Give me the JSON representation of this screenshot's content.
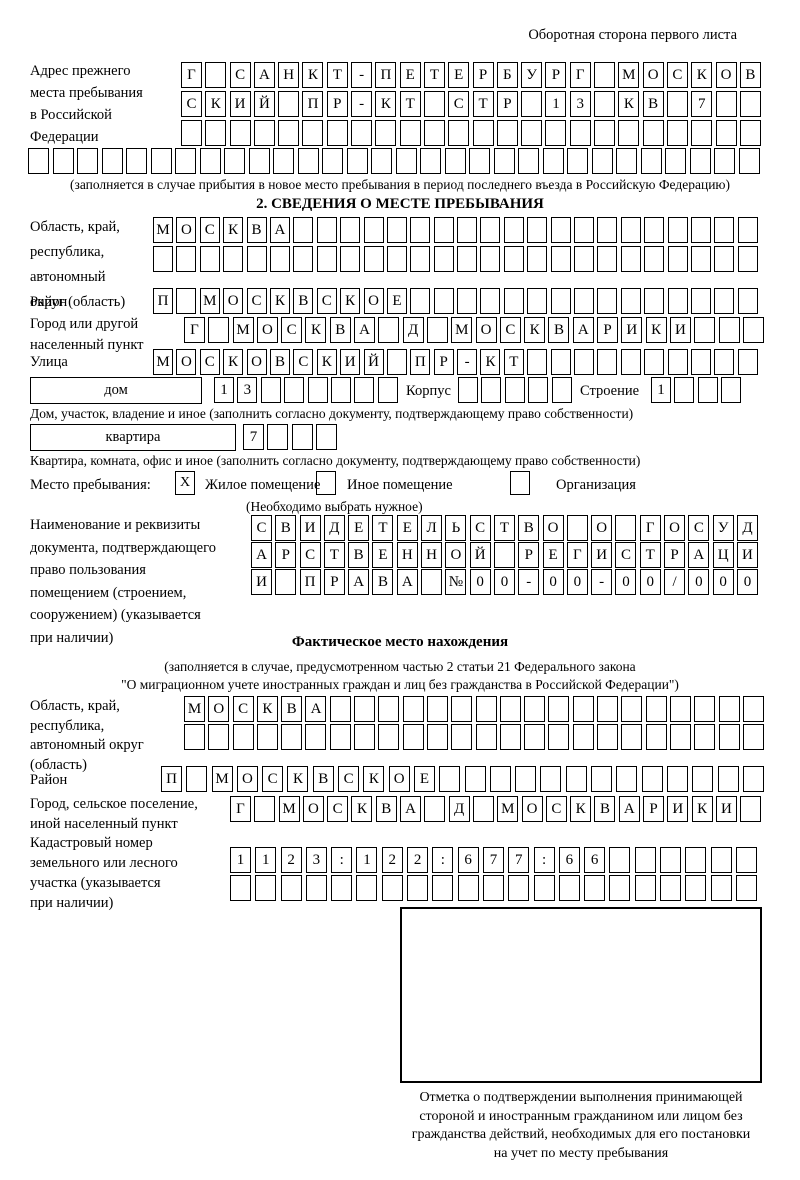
{
  "header_note": "Оборотная сторона первого листа",
  "prev_address": {
    "label_lines": [
      "Адрес прежнего",
      "места пребывания",
      "в Российской",
      "Федерации"
    ],
    "rows": [
      {
        "text": "Г САНКТ-ПЕТЕРБУРГ МОСКОВ",
        "len": 24
      },
      {
        "text": "СКИЙ ПР-КТ СТР 13 КВ 7",
        "len": 24
      },
      {
        "text": "",
        "len": 24
      },
      {
        "text": "",
        "len": 30
      }
    ],
    "caption": "(заполняется в случае прибытия в новое место пребывания в период последнего въезда в Российскую Федерацию)"
  },
  "section2": {
    "title": "2. СВЕДЕНИЯ О МЕСТЕ ПРЕБЫВАНИЯ",
    "region": {
      "label_lines": [
        "Область, край,",
        "республика,",
        "автономный",
        "округ (область)"
      ],
      "rows": [
        {
          "text": "МОСКВА",
          "len": 26
        },
        {
          "text": "",
          "len": 26
        }
      ]
    },
    "district": {
      "label": "Район",
      "row": {
        "text": "П МОСКВСКОЕ",
        "len": 26
      }
    },
    "city": {
      "label_lines": [
        "Город или другой",
        "населенный пункт"
      ],
      "row": {
        "text": "Г МОСКВА Д МОСКВАРИКИ",
        "len": 24
      }
    },
    "street": {
      "label": "Улица",
      "row": {
        "text": "МОСКОВСКИЙ ПР-КТ",
        "len": 26
      }
    },
    "house": {
      "box_label": "дом",
      "number_row": {
        "text": "13",
        "len": 8
      },
      "korpus_label": "Корпус",
      "korpus_row": {
        "text": "",
        "len": 5
      },
      "stroenie_label": "Строение",
      "stroenie_row": {
        "text": "1",
        "len": 4
      },
      "caption": "Дом, участок, владение и иное (заполнить согласно документу, подтверждающему право собственности)"
    },
    "apartment": {
      "box_label": "квартира",
      "row": {
        "text": "7",
        "len": 4
      },
      "caption": "Квартира, комната, офис и иное (заполнить согласно документу, подтверждающему право собственности)"
    },
    "stay_type": {
      "label": "Место пребывания:",
      "options": [
        {
          "label": "Жилое помещение",
          "checked": "X"
        },
        {
          "label": "Иное помещение",
          "checked": ""
        },
        {
          "label": "Организация",
          "checked": ""
        }
      ],
      "note": "(Необходимо выбрать нужное)"
    },
    "document": {
      "label_lines": [
        "Наименование и реквизиты",
        "документа, подтверждающего",
        "право пользования",
        "помещением (строением,",
        "сооружением) (указывается",
        "при наличии)"
      ],
      "rows": [
        {
          "text": "СВИДЕТЕЛЬСТВО О ГОСУД",
          "len": 21
        },
        {
          "text": "АРСТВЕННОЙ РЕГИСТРАЦИ",
          "len": 21
        },
        {
          "text": "И ПРАВА №00-00-00/000",
          "len": 21
        }
      ]
    }
  },
  "actual_location": {
    "title": "Фактическое место нахождения",
    "caption_lines": [
      "(заполняется в случае, предусмотренном частью 2 статьи 21 Федерального закона",
      "\"О миграционном учете иностранных граждан и лиц без гражданства в Российской Федерации\")"
    ],
    "region": {
      "label_lines": [
        "Область, край,",
        "республика,",
        "автономный округ",
        "(область)"
      ],
      "rows": [
        {
          "text": "МОСКВА",
          "len": 24
        },
        {
          "text": "",
          "len": 24
        }
      ]
    },
    "district": {
      "label": "Район",
      "row": {
        "text": "П МОСКВСКОЕ",
        "len": 24
      }
    },
    "city": {
      "label_lines": [
        "Город, сельское поселение,",
        "иной населенный пункт"
      ],
      "row": {
        "text": "Г МОСКВА Д МОСКВАРИКИ",
        "len": 22
      }
    },
    "cadastral": {
      "label_lines": [
        "Кадастровый номер",
        "земельного или лесного",
        "участка (указывается",
        "при наличии)"
      ],
      "rows": [
        {
          "text": "1123:122:677:66",
          "len": 21
        },
        {
          "text": "",
          "len": 21
        }
      ]
    }
  },
  "confirmation": {
    "caption_lines": [
      "Отметка о подтверждении выполнения принимающей",
      "стороной и иностранным гражданином или лицом без",
      "гражданства действий, необходимых для его постановки",
      "на учет по месту пребывания"
    ]
  }
}
